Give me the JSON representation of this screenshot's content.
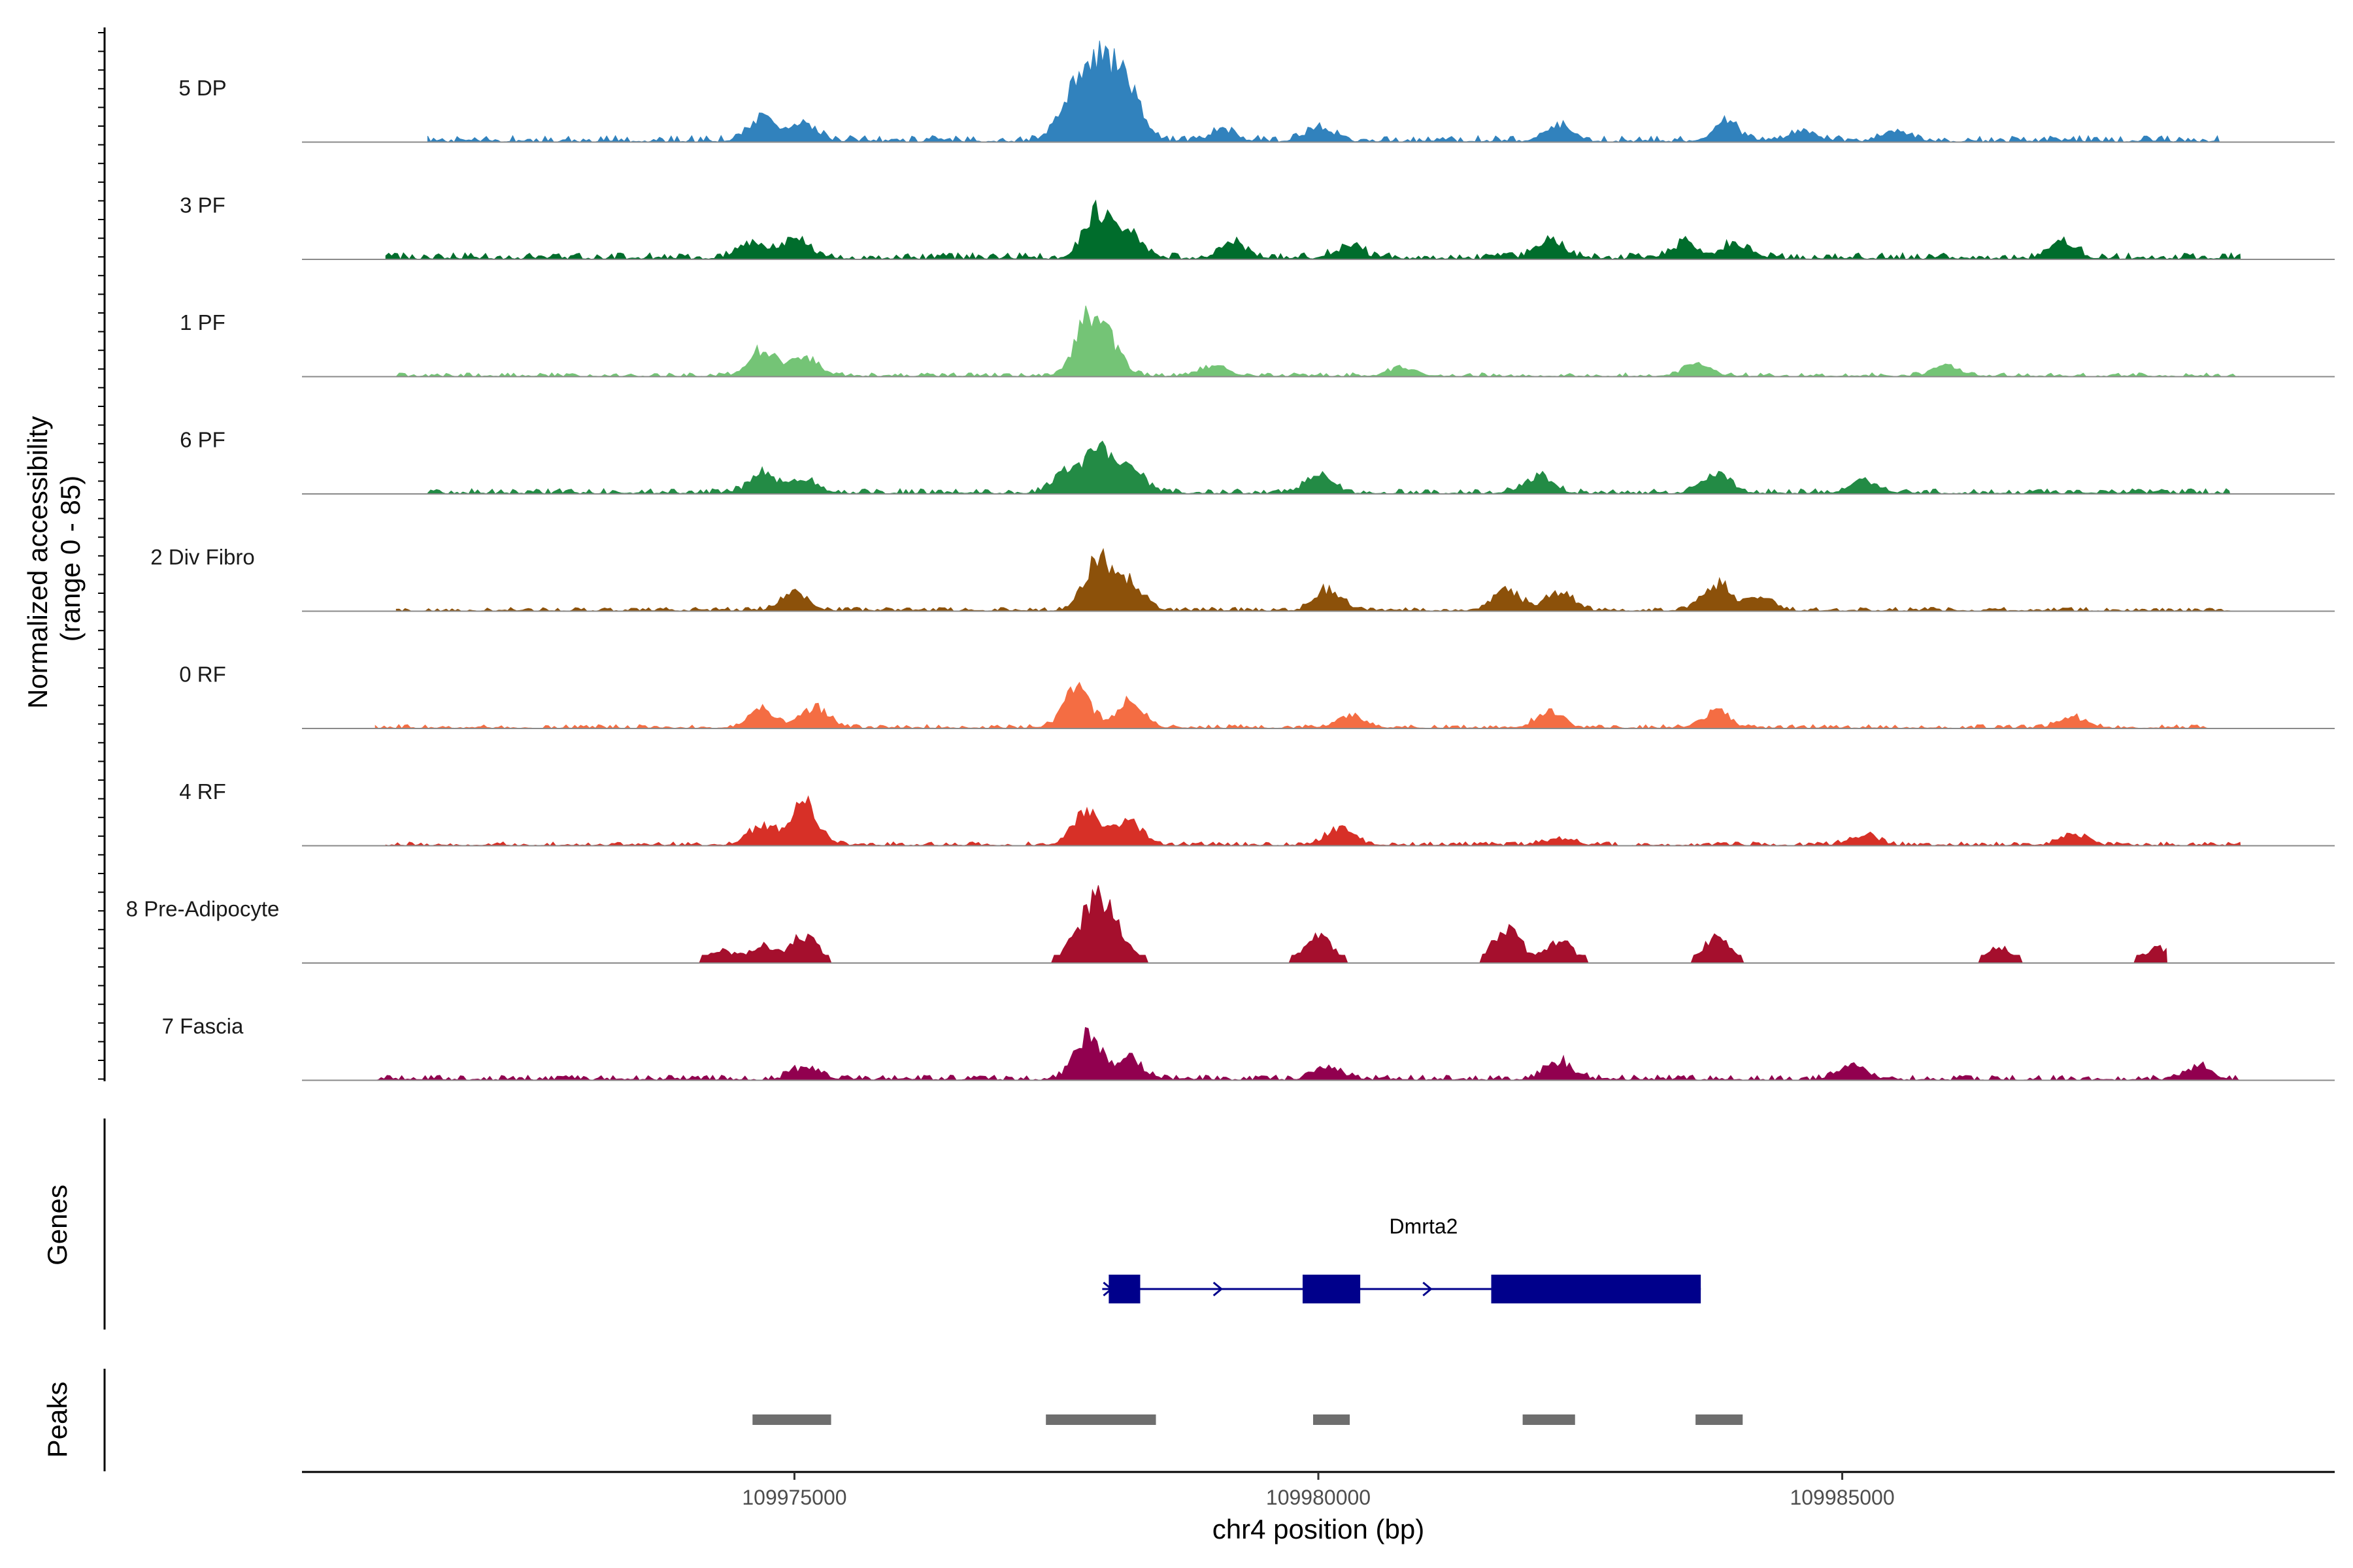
{
  "chart_data": {
    "type": "area",
    "title": "",
    "ylabel_lines": [
      "Normalized accessibility",
      "(range 0 - 85)"
    ],
    "ylim": [
      0,
      85
    ],
    "xlabel": "chr4 position (bp)",
    "xlim": [
      109970300,
      109989700
    ],
    "x_ticks": [
      109975000,
      109980000,
      109985000
    ],
    "x_tick_labels": [
      "109975000",
      "109980000",
      "109985000"
    ],
    "tracks": [
      {
        "name": "5 DP",
        "color": "#3182bd",
        "bg": 5,
        "start": 109971500,
        "end": 109988600,
        "peaks": [
          {
            "x": 109974700,
            "h": 18
          },
          {
            "x": 109975100,
            "h": 14
          },
          {
            "x": 109977600,
            "h": 18
          },
          {
            "x": 109977900,
            "h": 70
          },
          {
            "x": 109978200,
            "h": 28
          },
          {
            "x": 109979100,
            "h": 8
          },
          {
            "x": 109980000,
            "h": 10
          },
          {
            "x": 109982300,
            "h": 13
          },
          {
            "x": 109983900,
            "h": 14
          },
          {
            "x": 109984600,
            "h": 8
          },
          {
            "x": 109985500,
            "h": 7
          }
        ]
      },
      {
        "name": "3 PF",
        "color": "#006d2c",
        "bg": 5,
        "start": 109971100,
        "end": 109988800,
        "peaks": [
          {
            "x": 109974600,
            "h": 12
          },
          {
            "x": 109975000,
            "h": 16
          },
          {
            "x": 109977900,
            "h": 36
          },
          {
            "x": 109978200,
            "h": 18
          },
          {
            "x": 109979200,
            "h": 12
          },
          {
            "x": 109980300,
            "h": 10
          },
          {
            "x": 109982200,
            "h": 15
          },
          {
            "x": 109983500,
            "h": 12
          },
          {
            "x": 109984000,
            "h": 12
          },
          {
            "x": 109987100,
            "h": 12
          }
        ]
      },
      {
        "name": "1 PF",
        "color": "#74c476",
        "bg": 3,
        "start": 109971200,
        "end": 109988800,
        "peaks": [
          {
            "x": 109974700,
            "h": 22
          },
          {
            "x": 109975100,
            "h": 16
          },
          {
            "x": 109977800,
            "h": 40
          },
          {
            "x": 109978000,
            "h": 22
          },
          {
            "x": 109979000,
            "h": 8
          },
          {
            "x": 109980800,
            "h": 7
          },
          {
            "x": 109983600,
            "h": 9
          },
          {
            "x": 109986000,
            "h": 8
          }
        ]
      },
      {
        "name": "6 PF",
        "color": "#238b45",
        "bg": 4,
        "start": 109971500,
        "end": 109988700,
        "peaks": [
          {
            "x": 109974700,
            "h": 16
          },
          {
            "x": 109975100,
            "h": 10
          },
          {
            "x": 109977600,
            "h": 16
          },
          {
            "x": 109977900,
            "h": 34
          },
          {
            "x": 109978200,
            "h": 20
          },
          {
            "x": 109980000,
            "h": 14
          },
          {
            "x": 109982100,
            "h": 14
          },
          {
            "x": 109983800,
            "h": 16
          },
          {
            "x": 109985200,
            "h": 10
          }
        ]
      },
      {
        "name": "2 Div Fibro",
        "color": "#8c510a",
        "bg": 3,
        "start": 109971200,
        "end": 109988700,
        "peaks": [
          {
            "x": 109975000,
            "h": 14
          },
          {
            "x": 109977900,
            "h": 40
          },
          {
            "x": 109978200,
            "h": 22
          },
          {
            "x": 109980100,
            "h": 16
          },
          {
            "x": 109981800,
            "h": 16
          },
          {
            "x": 109982300,
            "h": 14
          },
          {
            "x": 109983800,
            "h": 22
          },
          {
            "x": 109984200,
            "h": 10
          }
        ]
      },
      {
        "name": "0 RF",
        "color": "#f46d43",
        "bg": 3,
        "start": 109971000,
        "end": 109988500,
        "peaks": [
          {
            "x": 109974700,
            "h": 14
          },
          {
            "x": 109975200,
            "h": 16
          },
          {
            "x": 109977700,
            "h": 30
          },
          {
            "x": 109978200,
            "h": 20
          },
          {
            "x": 109980300,
            "h": 10
          },
          {
            "x": 109982200,
            "h": 12
          },
          {
            "x": 109983800,
            "h": 12
          },
          {
            "x": 109987200,
            "h": 8
          }
        ]
      },
      {
        "name": "4 RF",
        "color": "#d73027",
        "bg": 3,
        "start": 109971100,
        "end": 109988800,
        "peaks": [
          {
            "x": 109974700,
            "h": 16
          },
          {
            "x": 109975100,
            "h": 32
          },
          {
            "x": 109977800,
            "h": 28
          },
          {
            "x": 109978200,
            "h": 18
          },
          {
            "x": 109980200,
            "h": 14
          },
          {
            "x": 109982300,
            "h": 6
          },
          {
            "x": 109985200,
            "h": 8
          },
          {
            "x": 109987200,
            "h": 8
          }
        ]
      },
      {
        "name": "8 Pre-Adipocyte",
        "color": "#a50f2d",
        "bg": 0,
        "start": 109971600,
        "end": 109988100,
        "peaks": [
          {
            "x": 109974300,
            "h": 10
          },
          {
            "x": 109974700,
            "h": 14
          },
          {
            "x": 109975100,
            "h": 22
          },
          {
            "x": 109977900,
            "h": 50
          },
          {
            "x": 109980000,
            "h": 24
          },
          {
            "x": 109981800,
            "h": 30
          },
          {
            "x": 109982300,
            "h": 18
          },
          {
            "x": 109983800,
            "h": 20
          },
          {
            "x": 109986500,
            "h": 12
          },
          {
            "x": 109988000,
            "h": 12
          }
        ]
      },
      {
        "name": "7 Fascia",
        "color": "#91004f",
        "bg": 4,
        "start": 109971000,
        "end": 109988800,
        "peaks": [
          {
            "x": 109975100,
            "h": 10
          },
          {
            "x": 109977800,
            "h": 34
          },
          {
            "x": 109978200,
            "h": 16
          },
          {
            "x": 109980100,
            "h": 10
          },
          {
            "x": 109982300,
            "h": 14
          },
          {
            "x": 109985100,
            "h": 12
          },
          {
            "x": 109988400,
            "h": 10
          }
        ]
      }
    ],
    "genes_label": "Genes",
    "gene": {
      "name": "Dmrta2",
      "strand": "+",
      "color": "#00008b",
      "start": 109978000,
      "end": 109983650,
      "exons": [
        [
          109978000,
          109978300
        ],
        [
          109979850,
          109980400
        ],
        [
          109981650,
          109983650
        ]
      ]
    },
    "peaks_label": "Peaks",
    "peak_regions": [
      [
        109974600,
        109975350
      ],
      [
        109977400,
        109978450
      ],
      [
        109979950,
        109980300
      ],
      [
        109981950,
        109982450
      ],
      [
        109983600,
        109984050
      ]
    ],
    "peak_color": "#6e6e6e"
  }
}
